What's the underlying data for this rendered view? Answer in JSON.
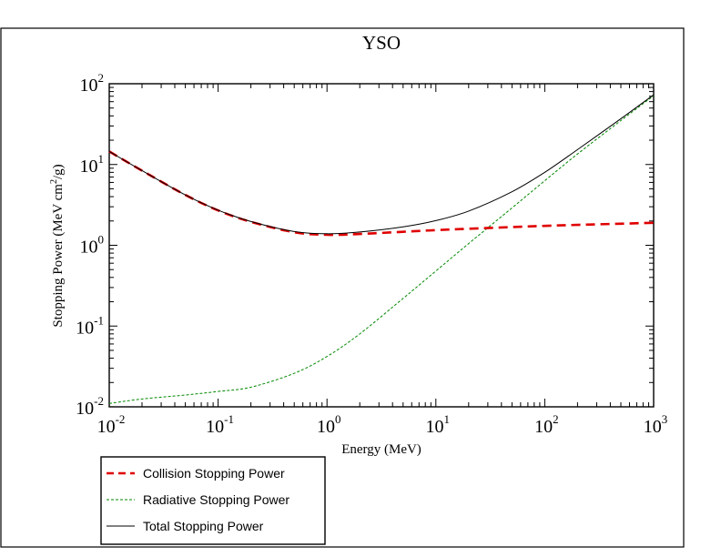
{
  "chart_data": {
    "type": "line",
    "title": "YSO",
    "xlabel": "Energy (MeV)",
    "ylabel": "Stopping Power (MeV cm²/g)",
    "xscale": "log",
    "yscale": "log",
    "xlim": [
      0.01,
      1000
    ],
    "ylim": [
      0.01,
      100
    ],
    "grid": false,
    "legend_position": "bottom-left, below plot",
    "x_ticks": [
      {
        "value": 0.01,
        "base": "10",
        "exp": "-2"
      },
      {
        "value": 0.1,
        "base": "10",
        "exp": "-1"
      },
      {
        "value": 1,
        "base": "10",
        "exp": "0"
      },
      {
        "value": 10,
        "base": "10",
        "exp": "1"
      },
      {
        "value": 100,
        "base": "10",
        "exp": "2"
      },
      {
        "value": 1000,
        "base": "10",
        "exp": "3"
      }
    ],
    "y_ticks": [
      {
        "value": 0.01,
        "base": "10",
        "exp": "-2"
      },
      {
        "value": 0.1,
        "base": "10",
        "exp": "-1"
      },
      {
        "value": 1,
        "base": "10",
        "exp": "0"
      },
      {
        "value": 10,
        "base": "10",
        "exp": "1"
      },
      {
        "value": 100,
        "base": "10",
        "exp": "2"
      }
    ],
    "series": [
      {
        "name": "Collision Stopping Power",
        "color": "#e00000",
        "style": "dashed-thick",
        "x": [
          0.01,
          0.02,
          0.05,
          0.1,
          0.2,
          0.5,
          1,
          2,
          5,
          10,
          20,
          50,
          100,
          200,
          500,
          1000
        ],
        "y": [
          14.5,
          8.4,
          4.2,
          2.7,
          1.95,
          1.45,
          1.35,
          1.38,
          1.47,
          1.54,
          1.6,
          1.68,
          1.74,
          1.79,
          1.85,
          1.9
        ]
      },
      {
        "name": "Radiative Stopping Power",
        "color": "#008800",
        "style": "dashed-thin",
        "x": [
          0.01,
          0.02,
          0.05,
          0.1,
          0.2,
          0.5,
          1,
          2,
          5,
          10,
          20,
          50,
          100,
          200,
          500,
          1000
        ],
        "y": [
          0.011,
          0.0125,
          0.014,
          0.0155,
          0.0175,
          0.026,
          0.042,
          0.08,
          0.22,
          0.48,
          1.05,
          2.9,
          6.3,
          13.5,
          35.0,
          71.0
        ]
      },
      {
        "name": "Total Stopping Power",
        "color": "#000000",
        "style": "solid",
        "x": [
          0.01,
          0.02,
          0.05,
          0.1,
          0.2,
          0.5,
          1,
          2,
          5,
          10,
          20,
          50,
          100,
          200,
          500,
          1000
        ],
        "y": [
          14.5,
          8.4,
          4.2,
          2.72,
          1.97,
          1.48,
          1.39,
          1.46,
          1.69,
          2.02,
          2.65,
          4.6,
          8.0,
          15.3,
          36.9,
          72.9
        ]
      }
    ]
  }
}
